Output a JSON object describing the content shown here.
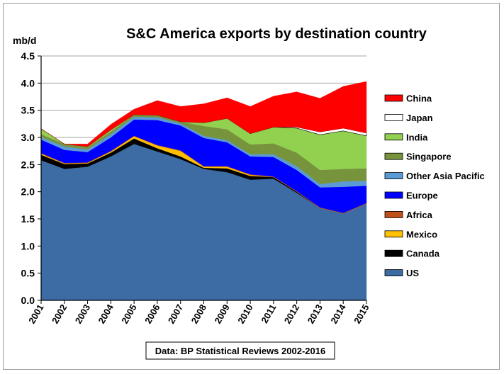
{
  "chart_data": {
    "type": "area",
    "stacked": true,
    "title": "S&C America  exports by destination country",
    "ylabel": "mb/d",
    "xlabel": "",
    "ylim": [
      0,
      4.5
    ],
    "yticks": [
      "0.0",
      "0.5",
      "1.0",
      "1.5",
      "2.0",
      "2.5",
      "3.0",
      "3.5",
      "4.0",
      "4.5"
    ],
    "y_tick_values": [
      0,
      0.5,
      1,
      1.5,
      2,
      2.5,
      3,
      3.5,
      4,
      4.5
    ],
    "x": [
      "2001",
      "2002",
      "2003",
      "2004",
      "2005",
      "2006",
      "2007",
      "2008",
      "2009",
      "2010",
      "2011",
      "2012",
      "2013",
      "2014",
      "2015"
    ],
    "legend_position": "right",
    "note": "Data: BP Statistical Reviews 2002-2016",
    "series": [
      {
        "name": "US",
        "color": "#3d6ba4",
        "values": [
          2.58,
          2.42,
          2.46,
          2.65,
          2.88,
          2.74,
          2.6,
          2.42,
          2.36,
          2.22,
          2.24,
          1.98,
          1.7,
          1.6,
          1.78
        ]
      },
      {
        "name": "Canada",
        "color": "#000000",
        "values": [
          0.1,
          0.09,
          0.06,
          0.07,
          0.1,
          0.06,
          0.05,
          0.02,
          0.07,
          0.07,
          0.03,
          0.02,
          0.0,
          0.0,
          0.0
        ]
      },
      {
        "name": "Mexico",
        "color": "#ffc000",
        "values": [
          0.02,
          0.01,
          0.01,
          0.02,
          0.04,
          0.05,
          0.1,
          0.02,
          0.03,
          0.02,
          0.0,
          0.0,
          0.0,
          0.0,
          0.0
        ]
      },
      {
        "name": "Africa",
        "color": "#c0501a",
        "values": [
          0.01,
          0.01,
          0.01,
          0.01,
          0.01,
          0.01,
          0.01,
          0.01,
          0.01,
          0.01,
          0.01,
          0.01,
          0.01,
          0.01,
          0.01
        ]
      },
      {
        "name": "Europe",
        "color": "#0000ff",
        "values": [
          0.25,
          0.24,
          0.19,
          0.25,
          0.3,
          0.46,
          0.46,
          0.52,
          0.44,
          0.33,
          0.36,
          0.39,
          0.37,
          0.48,
          0.32
        ]
      },
      {
        "name": "Other Asia Pacific",
        "color": "#5b9bd5",
        "values": [
          0.05,
          0.06,
          0.05,
          0.06,
          0.05,
          0.05,
          0.04,
          0.04,
          0.04,
          0.04,
          0.05,
          0.07,
          0.06,
          0.1,
          0.09
        ]
      },
      {
        "name": "Singapore",
        "color": "#77933c",
        "values": [
          0.05,
          0.05,
          0.04,
          0.05,
          0.04,
          0.04,
          0.03,
          0.18,
          0.2,
          0.18,
          0.2,
          0.25,
          0.26,
          0.23,
          0.23
        ]
      },
      {
        "name": "India",
        "color": "#92d050",
        "values": [
          0.1,
          0.0,
          0.01,
          0.03,
          0.0,
          0.0,
          0.0,
          0.06,
          0.2,
          0.2,
          0.3,
          0.45,
          0.65,
          0.7,
          0.6
        ]
      },
      {
        "name": "Japan",
        "color": "#ffffff",
        "values": [
          0.0,
          0.0,
          0.0,
          0.0,
          0.0,
          0.0,
          0.0,
          0.0,
          0.0,
          0.0,
          0.0,
          0.02,
          0.05,
          0.05,
          0.05
        ]
      },
      {
        "name": "China",
        "color": "#ff0000",
        "values": [
          0.0,
          0.0,
          0.05,
          0.1,
          0.1,
          0.27,
          0.28,
          0.35,
          0.38,
          0.5,
          0.57,
          0.65,
          0.62,
          0.77,
          0.95
        ]
      }
    ]
  }
}
